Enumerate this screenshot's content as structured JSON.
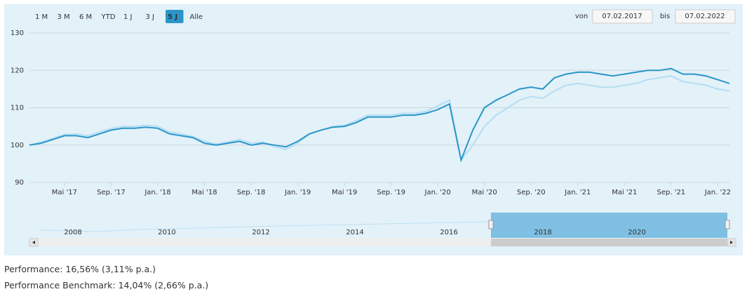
{
  "range_buttons": [
    "1 M",
    "3 M",
    "6 M",
    "YTD",
    "1 J",
    "3 J",
    "5 J",
    "Alle"
  ],
  "selected_button": 6,
  "from_label": "von",
  "from_date": "07.02.2017",
  "to_label": "bis",
  "to_date": "07.02.2022",
  "navigator_labels": [
    "2008",
    "2010",
    "2012",
    "2014",
    "2016",
    "2018",
    "2020"
  ],
  "performance": "Performance: 16,56% (3,11% p.a.)",
  "performance_benchmark": "Performance Benchmark: 14,04% (2,66% p.a.)",
  "chart_data": {
    "type": "line",
    "x": [
      "2017-02",
      "2017-03",
      "2017-04",
      "2017-05",
      "2017-06",
      "2017-07",
      "2017-08",
      "2017-09",
      "2017-10",
      "2017-11",
      "2017-12",
      "2018-01",
      "2018-02",
      "2018-03",
      "2018-04",
      "2018-05",
      "2018-06",
      "2018-07",
      "2018-08",
      "2018-09",
      "2018-10",
      "2018-11",
      "2018-12",
      "2019-01",
      "2019-02",
      "2019-03",
      "2019-04",
      "2019-05",
      "2019-06",
      "2019-07",
      "2019-08",
      "2019-09",
      "2019-10",
      "2019-11",
      "2019-12",
      "2020-01",
      "2020-02",
      "2020-03",
      "2020-04",
      "2020-05",
      "2020-06",
      "2020-07",
      "2020-08",
      "2020-09",
      "2020-10",
      "2020-11",
      "2020-12",
      "2021-01",
      "2021-02",
      "2021-03",
      "2021-04",
      "2021-05",
      "2021-06",
      "2021-07",
      "2021-08",
      "2021-09",
      "2021-10",
      "2021-11",
      "2021-12",
      "2022-01",
      "2022-02"
    ],
    "series": [
      {
        "color": "#b5def3",
        "values": [
          100,
          100.8,
          101.8,
          102.8,
          103,
          102.5,
          103.5,
          104.5,
          105,
          105,
          105.3,
          105,
          103.5,
          103,
          102.3,
          101,
          100.3,
          100.8,
          101.5,
          100.5,
          100.8,
          99.5,
          98.8,
          100.5,
          103,
          104,
          105,
          105.3,
          106.5,
          108,
          108,
          108,
          108.5,
          108.5,
          109,
          110.5,
          112,
          96,
          100,
          105,
          108,
          110,
          112,
          113,
          112.5,
          114.5,
          116,
          116.5,
          116,
          115.5,
          115.5,
          116,
          116.5,
          117.5,
          118,
          118.5,
          117,
          116.5,
          116,
          115,
          114.5
        ]
      },
      {
        "color": "#2a96c8",
        "values": [
          100,
          100.5,
          101.5,
          102.5,
          102.5,
          102,
          103,
          104,
          104.5,
          104.5,
          104.8,
          104.5,
          103,
          102.5,
          102,
          100.5,
          100,
          100.5,
          101,
          100,
          100.5,
          100,
          99.5,
          101,
          103,
          104,
          104.8,
          105,
          106,
          107.5,
          107.5,
          107.5,
          108,
          108,
          108.5,
          109.5,
          111,
          96,
          104,
          110,
          112,
          113.5,
          115,
          115.5,
          115,
          118,
          119,
          119.5,
          119.5,
          119,
          118.5,
          119,
          119.5,
          120,
          120,
          120.5,
          119,
          119,
          118.5,
          117.5,
          116.5
        ]
      }
    ],
    "xlim": [
      "2017-02",
      "2022-02"
    ],
    "xticks": [
      {
        "value": "2017-05",
        "label": "Mai '17"
      },
      {
        "value": "2017-09",
        "label": "Sep. '17"
      },
      {
        "value": "2018-01",
        "label": "Jan. '18"
      },
      {
        "value": "2018-05",
        "label": "Mai '18"
      },
      {
        "value": "2018-09",
        "label": "Sep. '18"
      },
      {
        "value": "2019-01",
        "label": "Jan. '19"
      },
      {
        "value": "2019-05",
        "label": "Mai '19"
      },
      {
        "value": "2019-09",
        "label": "Sep. '19"
      },
      {
        "value": "2020-01",
        "label": "Jan. '20"
      },
      {
        "value": "2020-05",
        "label": "Mai '20"
      },
      {
        "value": "2020-09",
        "label": "Sep. '20"
      },
      {
        "value": "2021-01",
        "label": "Jan. '21"
      },
      {
        "value": "2021-05",
        "label": "Mai '21"
      },
      {
        "value": "2021-09",
        "label": "Sep. '21"
      },
      {
        "value": "2022-01",
        "label": "Jan. '22"
      }
    ],
    "ylim": [
      90,
      130
    ],
    "yticks": [
      90,
      100,
      110,
      120,
      130
    ],
    "grid": true
  }
}
